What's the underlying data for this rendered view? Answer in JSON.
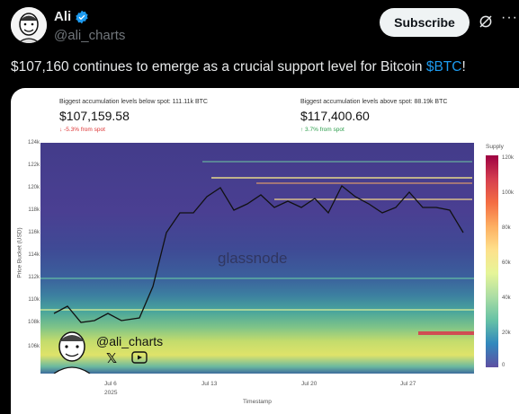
{
  "author": {
    "name": "Ali",
    "handle": "@ali_charts",
    "verified": true
  },
  "header": {
    "subscribe_label": "Subscribe",
    "grok_icon": "grok-icon",
    "more_label": "···"
  },
  "tweet": {
    "text_before": "$107,160 continues to emerge as a crucial support level for Bitcoin ",
    "cashtag": "$BTC",
    "text_after": "!"
  },
  "chart_image": {
    "stats": {
      "below_label": "Biggest accumulation levels below spot: 111.11k BTC",
      "below_value": "$107,159.58",
      "below_change": "↓ -5.3% from spot",
      "above_label": "Biggest accumulation levels above spot: 88.19k BTC",
      "above_value": "$117,400.60",
      "above_change": "↑ 3.7% from spot"
    },
    "watermark": "glassnode",
    "overlay_handle": "@ali_charts",
    "y_axis_title": "Price Bucket (USD)",
    "x_axis_title": "Timestamp",
    "x_year": "2025",
    "supply_title": "Supply",
    "y_ticks": [
      "124k",
      "122k",
      "120k",
      "118k",
      "116k",
      "114k",
      "112k",
      "110k",
      "108k",
      "106k"
    ],
    "x_ticks": [
      "Jul 6",
      "Jul 13",
      "Jul 20",
      "Jul 27"
    ],
    "colorbar_ticks": [
      "120k",
      "100k",
      "80k",
      "60k",
      "40k",
      "20k",
      "0"
    ],
    "colors": {
      "heatmap_low": "#433c8a",
      "heatmap_high": "#9e0142",
      "accent": "#1d9bf0"
    }
  }
}
